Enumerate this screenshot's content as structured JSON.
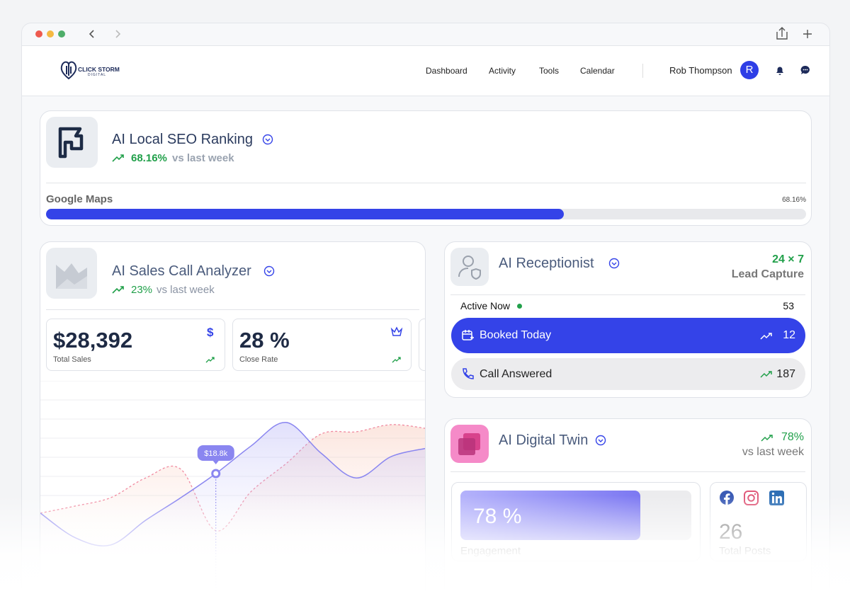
{
  "nav": {
    "brand": "CLICK STORM",
    "brand_sub": "DIGITAL",
    "links": [
      "Dashboard",
      "Activity",
      "Tools",
      "Calendar"
    ],
    "user": "Rob Thompson",
    "avatar": "R"
  },
  "seo": {
    "title": "AI Local SEO Ranking",
    "change": "68.16%",
    "change_label": "vs last week",
    "bar_label": "Google Maps",
    "progress": {
      "value": 68.16,
      "label": "68.16%"
    }
  },
  "sales": {
    "title": "AI Sales Call Analyzer",
    "change": "23%",
    "change_label": "vs last week",
    "stats": [
      {
        "value": "$28,392",
        "label": "Total Sales"
      },
      {
        "value": "28 %",
        "label": "Close Rate"
      }
    ],
    "chart": {
      "type": "line",
      "tooltip": "$18.8k",
      "tooltip_index": 5,
      "series": [
        {
          "color": "#8a86f0",
          "values": [
            11.6,
            7.1,
            5.8,
            10.3,
            14.4,
            18.8,
            23.8,
            28.1,
            22.5,
            18.0,
            21.9,
            23.4
          ]
        },
        {
          "color": "#f08aa0",
          "values": [
            11.6,
            12.9,
            14.4,
            18.0,
            19.6,
            8.4,
            15.5,
            20.6,
            26.0,
            26.4,
            27.7,
            27.0
          ]
        }
      ]
    }
  },
  "receptionist": {
    "title": "AI Receptionist",
    "availability": "24 × 7",
    "subtitle": "Lead Capture",
    "active_label": "Active Now",
    "active": 53,
    "booked_label": "Booked Today",
    "booked": 12,
    "answered_label": "Call Answered",
    "answered": 187
  },
  "twin": {
    "title": "AI Digital Twin",
    "change": "78%",
    "change_label": "vs last week",
    "engagement": {
      "value": 78,
      "label": "78 %"
    },
    "engagement_label": "Engagement",
    "posts": 26,
    "posts_label": "Total Posts"
  }
}
